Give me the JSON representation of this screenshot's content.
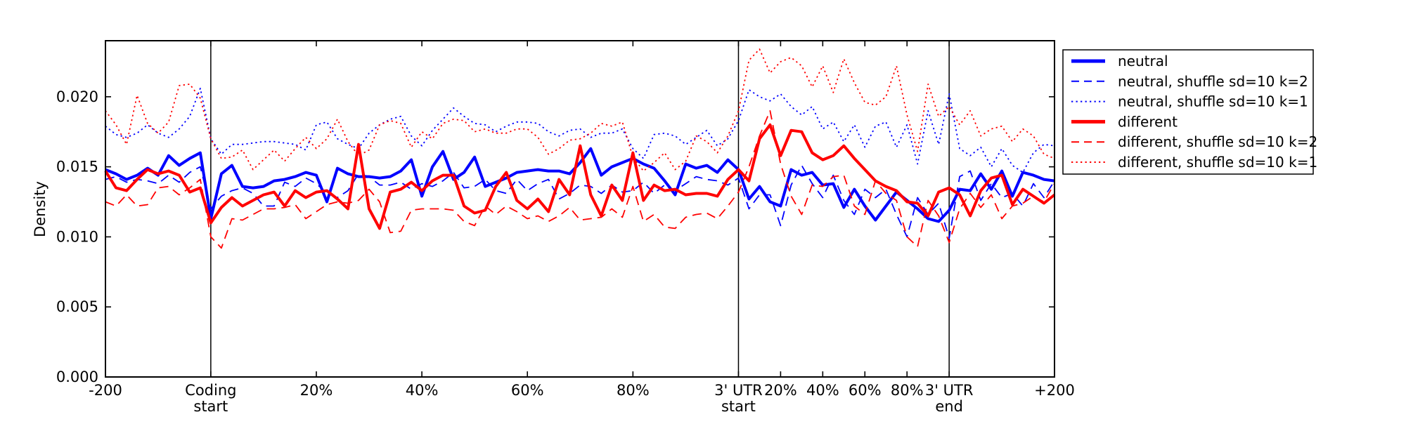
{
  "chart_data": {
    "type": "line",
    "title": "",
    "ylabel": "Density",
    "ylim": [
      0,
      0.024
    ],
    "grid": "off",
    "y_ticks": [
      {
        "value": 0.0,
        "label": "0.000"
      },
      {
        "value": 0.005,
        "label": "0.005"
      },
      {
        "value": 0.01,
        "label": "0.010"
      },
      {
        "value": 0.015,
        "label": "0.015"
      },
      {
        "value": 0.02,
        "label": "0.020"
      }
    ],
    "x_axis": {
      "regions": [
        {
          "name": "upstream-of-coding",
          "bins": 10,
          "width_frac": 0.111
        },
        {
          "name": "coding-region",
          "bins": 50,
          "width_frac": 0.556
        },
        {
          "name": "three-prime-utr",
          "bins": 20,
          "width_frac": 0.222
        },
        {
          "name": "downstream-of-utr",
          "bins": 10,
          "width_frac": 0.111
        }
      ],
      "separator_bins": [
        10,
        60,
        80
      ],
      "ticks": [
        {
          "bin": 0,
          "lines": [
            "-200"
          ]
        },
        {
          "bin": 10,
          "lines": [
            "Coding",
            "start"
          ]
        },
        {
          "bin": 20,
          "lines": [
            "20%"
          ]
        },
        {
          "bin": 30,
          "lines": [
            "40%"
          ]
        },
        {
          "bin": 40,
          "lines": [
            "60%"
          ]
        },
        {
          "bin": 50,
          "lines": [
            "80%"
          ]
        },
        {
          "bin": 60,
          "lines": [
            "3' UTR",
            "start"
          ]
        },
        {
          "bin": 64,
          "lines": [
            "20%"
          ]
        },
        {
          "bin": 68,
          "lines": [
            "40%"
          ]
        },
        {
          "bin": 72,
          "lines": [
            "60%"
          ]
        },
        {
          "bin": 76,
          "lines": [
            "80%"
          ]
        },
        {
          "bin": 80,
          "lines": [
            "3' UTR",
            "end"
          ]
        },
        {
          "bin": 90,
          "lines": [
            "+200"
          ]
        }
      ]
    },
    "legend": {
      "position": "outside-top-right",
      "entries": [
        "neutral",
        "neutral, shuffle sd=10 k=2",
        "neutral, shuffle sd=10 k=1",
        "different",
        "different, shuffle sd=10 k=2",
        "different, shuffle sd=10 k=1"
      ]
    },
    "series": [
      {
        "name": "neutral",
        "color": "#0000ff",
        "style": "solid",
        "linewidth": 4,
        "values": [
          0.0148,
          0.0145,
          0.0141,
          0.0144,
          0.0149,
          0.0144,
          0.0158,
          0.0151,
          0.0156,
          0.016,
          0.0113,
          0.0145,
          0.0151,
          0.0136,
          0.0135,
          0.0136,
          0.014,
          0.0141,
          0.0143,
          0.0146,
          0.0144,
          0.0125,
          0.0149,
          0.0145,
          0.0143,
          0.0143,
          0.0142,
          0.0143,
          0.0147,
          0.0155,
          0.0129,
          0.015,
          0.0161,
          0.0141,
          0.0146,
          0.0157,
          0.0136,
          0.0139,
          0.0142,
          0.0146,
          0.0147,
          0.0148,
          0.0147,
          0.0147,
          0.0145,
          0.0153,
          0.0163,
          0.0144,
          0.015,
          0.0153,
          0.0156,
          0.0152,
          0.0149,
          0.014,
          0.013,
          0.0152,
          0.0149,
          0.0151,
          0.0146,
          0.0155,
          0.0148,
          0.0127,
          0.0136,
          0.0125,
          0.0122,
          0.0148,
          0.0144,
          0.0146,
          0.0137,
          0.0138,
          0.0121,
          0.0134,
          0.0122,
          0.0112,
          0.0122,
          0.0132,
          0.0126,
          0.012,
          0.0113,
          0.0111,
          0.0119,
          0.0134,
          0.0133,
          0.0145,
          0.0134,
          0.0147,
          0.0129,
          0.0146,
          0.0144,
          0.0141,
          0.014
        ]
      },
      {
        "name": "neutral, shuffle sd=10 k=2",
        "color": "#0000ff",
        "style": "dashed",
        "linewidth": 1.8,
        "values": [
          0.0141,
          0.0143,
          0.0139,
          0.0141,
          0.014,
          0.0138,
          0.0144,
          0.0139,
          0.0146,
          0.015,
          0.012,
          0.0129,
          0.0133,
          0.0135,
          0.0131,
          0.0122,
          0.0122,
          0.0139,
          0.0136,
          0.0142,
          0.0138,
          0.0131,
          0.0128,
          0.0133,
          0.0145,
          0.0143,
          0.0137,
          0.0137,
          0.0139,
          0.0134,
          0.0138,
          0.0136,
          0.014,
          0.0146,
          0.0135,
          0.0136,
          0.0141,
          0.0133,
          0.0131,
          0.0141,
          0.0133,
          0.0138,
          0.0141,
          0.0127,
          0.0131,
          0.0137,
          0.0136,
          0.0131,
          0.0137,
          0.0132,
          0.0133,
          0.0139,
          0.0131,
          0.0137,
          0.0133,
          0.0138,
          0.0143,
          0.0141,
          0.014,
          0.0137,
          0.0142,
          0.012,
          0.013,
          0.013,
          0.0108,
          0.0137,
          0.0151,
          0.0138,
          0.0128,
          0.0144,
          0.0126,
          0.0116,
          0.0134,
          0.0128,
          0.0134,
          0.0116,
          0.01,
          0.0128,
          0.0116,
          0.0124,
          0.0099,
          0.0143,
          0.0147,
          0.0126,
          0.0138,
          0.0128,
          0.0131,
          0.0122,
          0.0138,
          0.0128,
          0.014
        ]
      },
      {
        "name": "neutral, shuffle sd=10 k=1",
        "color": "#0000ff",
        "style": "dotted",
        "linewidth": 1.8,
        "values": [
          0.0179,
          0.0173,
          0.0171,
          0.0174,
          0.018,
          0.0174,
          0.0171,
          0.0177,
          0.0186,
          0.0206,
          0.017,
          0.0159,
          0.0166,
          0.0166,
          0.0167,
          0.0168,
          0.0168,
          0.0167,
          0.0166,
          0.0162,
          0.018,
          0.0182,
          0.017,
          0.0166,
          0.0163,
          0.0174,
          0.018,
          0.0184,
          0.0186,
          0.0172,
          0.0165,
          0.0176,
          0.0184,
          0.0192,
          0.0186,
          0.0181,
          0.018,
          0.0175,
          0.0179,
          0.0182,
          0.0182,
          0.0181,
          0.0175,
          0.0172,
          0.0176,
          0.0177,
          0.0171,
          0.0174,
          0.0174,
          0.0177,
          0.0163,
          0.0156,
          0.0173,
          0.0174,
          0.0172,
          0.0166,
          0.0171,
          0.0176,
          0.0165,
          0.017,
          0.0183,
          0.0205,
          0.02,
          0.0197,
          0.0202,
          0.0193,
          0.0187,
          0.0193,
          0.0177,
          0.0182,
          0.0168,
          0.018,
          0.0164,
          0.0179,
          0.0182,
          0.0164,
          0.018,
          0.0152,
          0.019,
          0.0166,
          0.0202,
          0.0163,
          0.0158,
          0.0164,
          0.015,
          0.0163,
          0.0151,
          0.0146,
          0.016,
          0.0166,
          0.0165
        ]
      },
      {
        "name": "different",
        "color": "#ff0000",
        "style": "solid",
        "linewidth": 4,
        "values": [
          0.0147,
          0.0135,
          0.0133,
          0.0141,
          0.0148,
          0.0145,
          0.0147,
          0.0144,
          0.0132,
          0.0135,
          0.011,
          0.0121,
          0.0128,
          0.0122,
          0.0126,
          0.013,
          0.0132,
          0.0122,
          0.0133,
          0.0128,
          0.0132,
          0.0133,
          0.0127,
          0.012,
          0.0166,
          0.012,
          0.0106,
          0.0132,
          0.0134,
          0.0139,
          0.0133,
          0.014,
          0.0144,
          0.0144,
          0.0122,
          0.0117,
          0.0119,
          0.0136,
          0.0146,
          0.0126,
          0.012,
          0.0127,
          0.0118,
          0.0141,
          0.013,
          0.0165,
          0.013,
          0.0115,
          0.0137,
          0.0126,
          0.016,
          0.0126,
          0.0137,
          0.0133,
          0.0134,
          0.013,
          0.0131,
          0.0131,
          0.0129,
          0.0141,
          0.0148,
          0.014,
          0.017,
          0.018,
          0.0158,
          0.0176,
          0.0175,
          0.016,
          0.0155,
          0.0158,
          0.0165,
          0.0156,
          0.0148,
          0.014,
          0.0136,
          0.0133,
          0.0125,
          0.0124,
          0.0115,
          0.0132,
          0.0135,
          0.013,
          0.0115,
          0.0133,
          0.0142,
          0.0144,
          0.0123,
          0.0134,
          0.0129,
          0.0124,
          0.013
        ]
      },
      {
        "name": "different, shuffle sd=10 k=2",
        "color": "#ff0000",
        "style": "dashed",
        "linewidth": 1.8,
        "values": [
          0.0125,
          0.0122,
          0.013,
          0.0122,
          0.0123,
          0.0135,
          0.0136,
          0.013,
          0.0135,
          0.0141,
          0.01,
          0.0092,
          0.0113,
          0.0112,
          0.0116,
          0.012,
          0.012,
          0.0121,
          0.0123,
          0.0113,
          0.0118,
          0.0123,
          0.0125,
          0.0124,
          0.0126,
          0.0134,
          0.0125,
          0.0103,
          0.0104,
          0.0119,
          0.012,
          0.012,
          0.012,
          0.0119,
          0.0111,
          0.0108,
          0.0122,
          0.0116,
          0.0122,
          0.0118,
          0.0113,
          0.0115,
          0.0111,
          0.0115,
          0.0121,
          0.0112,
          0.0113,
          0.0114,
          0.012,
          0.0114,
          0.0136,
          0.0111,
          0.0116,
          0.0107,
          0.0106,
          0.0114,
          0.0116,
          0.0117,
          0.0113,
          0.0122,
          0.0132,
          0.015,
          0.0172,
          0.019,
          0.0152,
          0.0129,
          0.0116,
          0.0137,
          0.0136,
          0.0143,
          0.0144,
          0.0122,
          0.0116,
          0.014,
          0.0131,
          0.0126,
          0.01,
          0.0093,
          0.0126,
          0.0115,
          0.0096,
          0.012,
          0.0131,
          0.0121,
          0.013,
          0.0113,
          0.0122,
          0.0124,
          0.0129,
          0.0125,
          0.0138
        ]
      },
      {
        "name": "different, shuffle sd=10 k=1",
        "color": "#ff0000",
        "style": "dotted",
        "linewidth": 1.8,
        "values": [
          0.019,
          0.018,
          0.0166,
          0.0201,
          0.0181,
          0.0174,
          0.0182,
          0.0208,
          0.0209,
          0.0199,
          0.017,
          0.0156,
          0.0157,
          0.0162,
          0.0148,
          0.0155,
          0.0162,
          0.0154,
          0.0163,
          0.0171,
          0.0163,
          0.017,
          0.0184,
          0.0168,
          0.0158,
          0.0162,
          0.018,
          0.0183,
          0.0181,
          0.0164,
          0.0175,
          0.017,
          0.0181,
          0.0184,
          0.0183,
          0.0175,
          0.0177,
          0.0174,
          0.0174,
          0.0177,
          0.0177,
          0.0171,
          0.0159,
          0.0163,
          0.0169,
          0.017,
          0.0174,
          0.0181,
          0.0179,
          0.0182,
          0.0157,
          0.0147,
          0.0153,
          0.016,
          0.0148,
          0.0154,
          0.0172,
          0.0168,
          0.016,
          0.0172,
          0.019,
          0.0226,
          0.0234,
          0.0217,
          0.0225,
          0.0228,
          0.0222,
          0.0207,
          0.0222,
          0.0203,
          0.0227,
          0.021,
          0.0196,
          0.0194,
          0.02,
          0.0222,
          0.0187,
          0.0161,
          0.0209,
          0.0186,
          0.0193,
          0.018,
          0.019,
          0.0172,
          0.0177,
          0.0179,
          0.0168,
          0.0177,
          0.0172,
          0.0159,
          0.0156
        ]
      }
    ],
    "colors": {
      "neutral": "#0000ff",
      "different": "#ff0000",
      "axes": "#000000",
      "background": "#ffffff"
    }
  }
}
